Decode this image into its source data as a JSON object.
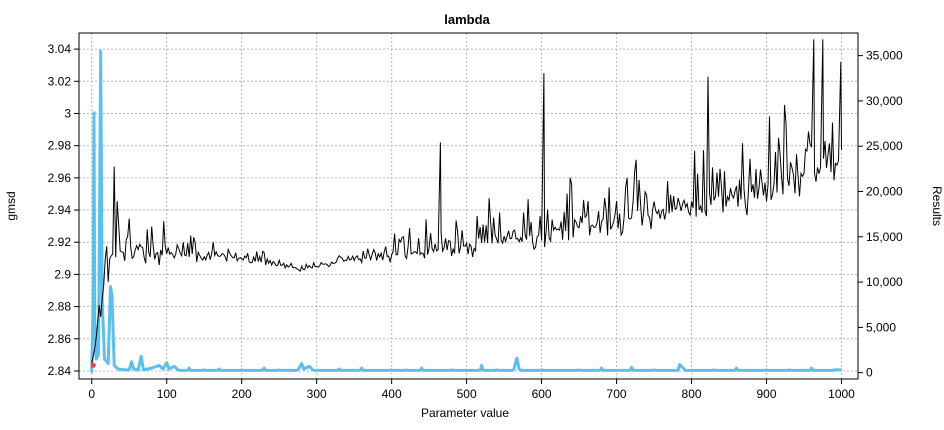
{
  "chart_data": {
    "type": "line",
    "title": "lambda",
    "xlabel": "Parameter value",
    "ylabel_left": "gmsd",
    "ylabel_right": "Results",
    "xlim": [
      -17,
      1022
    ],
    "ylim_left": [
      2.835,
      3.05
    ],
    "ylim_right": [
      -700,
      37500
    ],
    "x_ticks": [
      0,
      100,
      200,
      300,
      400,
      500,
      600,
      700,
      800,
      900,
      1000
    ],
    "x_tick_labels": [
      "0",
      "100",
      "200",
      "300",
      "400",
      "500",
      "600",
      "700",
      "800",
      "900",
      "1000"
    ],
    "y_left_ticks": [
      2.84,
      2.86,
      2.88,
      2.9,
      2.92,
      2.94,
      2.96,
      2.98,
      3.0,
      3.02,
      3.04
    ],
    "y_left_tick_labels": [
      "2.84",
      "2.86",
      "2.88",
      "2.9",
      "2.92",
      "2.94",
      "2.96",
      "2.98",
      "3",
      "3.02",
      "3.04"
    ],
    "y_right_ticks": [
      0,
      5000,
      10000,
      15000,
      20000,
      25000,
      30000,
      35000
    ],
    "y_right_tick_labels": [
      "0",
      "5,000",
      "10,000",
      "15,000",
      "20,000",
      "25,000",
      "30,000",
      "35,000"
    ],
    "grid": true,
    "legend": "none",
    "series": [
      {
        "axis": "left",
        "color": "#000000",
        "style": "line",
        "anchors": {
          "x": [
            0,
            3,
            5,
            8,
            12,
            18,
            25,
            30,
            40,
            50,
            60,
            80,
            100,
            120,
            140,
            160,
            180,
            200,
            220,
            240,
            260,
            280,
            300,
            320,
            340,
            360,
            380,
            400,
            450,
            500,
            550,
            600,
            650,
            700,
            750,
            800,
            850,
            900,
            950,
            1000
          ],
          "base": [
            2.845,
            2.85,
            2.86,
            2.87,
            2.88,
            2.9,
            2.912,
            2.914,
            2.915,
            2.916,
            2.916,
            2.914,
            2.913,
            2.912,
            2.912,
            2.912,
            2.911,
            2.909,
            2.908,
            2.907,
            2.905,
            2.903,
            2.905,
            2.907,
            2.909,
            2.91,
            2.91,
            2.912,
            2.914,
            2.918,
            2.922,
            2.925,
            2.93,
            2.935,
            2.94,
            2.945,
            2.95,
            2.956,
            2.963,
            2.972
          ],
          "amp": [
            0.0,
            0.01,
            0.015,
            0.02,
            0.035,
            0.04,
            0.04,
            0.035,
            0.03,
            0.025,
            0.02,
            0.018,
            0.015,
            0.012,
            0.01,
            0.008,
            0.006,
            0.006,
            0.005,
            0.005,
            0.004,
            0.003,
            0.003,
            0.004,
            0.005,
            0.006,
            0.007,
            0.01,
            0.014,
            0.018,
            0.02,
            0.022,
            0.024,
            0.026,
            0.028,
            0.03,
            0.032,
            0.035,
            0.038,
            0.04
          ]
        },
        "seed": 17,
        "n_points": 500,
        "extreme_points": [
          {
            "x": 963,
            "y": 3.046
          },
          {
            "x": 975,
            "y": 3.046
          },
          {
            "x": 603,
            "y": 3.025
          },
          {
            "x": 822,
            "y": 3.023
          },
          {
            "x": 999,
            "y": 3.032
          },
          {
            "x": 30,
            "y": 2.967
          },
          {
            "x": 465,
            "y": 2.982
          }
        ]
      },
      {
        "axis": "right",
        "color": "#5bc0eb",
        "style": "line",
        "points": [
          [
            0,
            0
          ],
          [
            2,
            8000
          ],
          [
            3,
            28700
          ],
          [
            4,
            6000
          ],
          [
            6,
            1500
          ],
          [
            9,
            2000
          ],
          [
            12,
            35500
          ],
          [
            14,
            8000
          ],
          [
            17,
            1500
          ],
          [
            22,
            1000
          ],
          [
            25,
            9500
          ],
          [
            27,
            8500
          ],
          [
            30,
            800
          ],
          [
            35,
            400
          ],
          [
            45,
            300
          ],
          [
            50,
            300
          ],
          [
            53,
            1200
          ],
          [
            56,
            400
          ],
          [
            62,
            300
          ],
          [
            66,
            1800
          ],
          [
            69,
            300
          ],
          [
            80,
            500
          ],
          [
            90,
            800
          ],
          [
            95,
            400
          ],
          [
            100,
            1100
          ],
          [
            103,
            400
          ],
          [
            110,
            700
          ],
          [
            115,
            300
          ],
          [
            130,
            500
          ],
          [
            150,
            300
          ],
          [
            170,
            400
          ],
          [
            200,
            300
          ],
          [
            230,
            500
          ],
          [
            250,
            300
          ],
          [
            275,
            300
          ],
          [
            280,
            1000
          ],
          [
            283,
            400
          ],
          [
            290,
            700
          ],
          [
            295,
            300
          ],
          [
            330,
            400
          ],
          [
            360,
            500
          ],
          [
            400,
            300
          ],
          [
            420,
            300
          ],
          [
            440,
            500
          ],
          [
            480,
            300
          ],
          [
            520,
            800
          ],
          [
            540,
            300
          ],
          [
            563,
            400
          ],
          [
            567,
            1600
          ],
          [
            570,
            400
          ],
          [
            600,
            300
          ],
          [
            650,
            300
          ],
          [
            680,
            500
          ],
          [
            720,
            600
          ],
          [
            750,
            300
          ],
          [
            784,
            900
          ],
          [
            790,
            400
          ],
          [
            830,
            300
          ],
          [
            860,
            500
          ],
          [
            900,
            300
          ],
          [
            930,
            300
          ],
          [
            960,
            500
          ],
          [
            990,
            300
          ],
          [
            1000,
            300
          ]
        ],
        "baseline": 250
      }
    ],
    "best_marker": {
      "x": 2,
      "y": 2.8435,
      "color": "#ff4040"
    }
  }
}
